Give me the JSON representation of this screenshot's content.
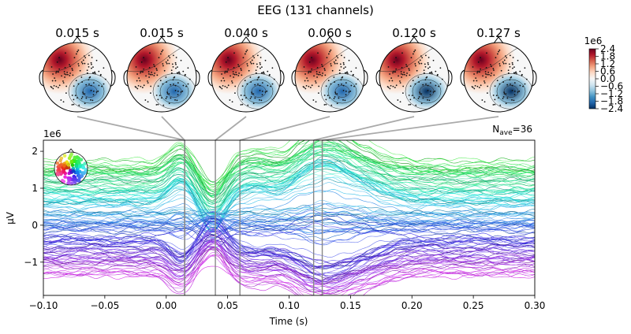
{
  "chart_data": {
    "type": "line",
    "title": "EEG (131 channels)",
    "n_channels": 131,
    "xlabel": "Time (s)",
    "ylabel": "µV",
    "y_exponent": "1e6",
    "xlim": [
      -0.1,
      0.3
    ],
    "ylim": [
      -1.9,
      2.3
    ],
    "xticks": [
      -0.1,
      -0.05,
      0.0,
      0.05,
      0.1,
      0.15,
      0.2,
      0.25,
      0.3
    ],
    "xtick_labels": [
      "−0.10",
      "−0.05",
      "0.00",
      "0.05",
      "0.10",
      "0.15",
      "0.20",
      "0.25",
      "0.30"
    ],
    "yticks": [
      -1,
      0,
      1,
      2
    ],
    "ytick_labels": [
      "−1",
      "0",
      "1",
      "2"
    ],
    "nave_label": "N",
    "nave_subscript": "ave",
    "nave_value": "=36",
    "topomap_times": [
      0.015,
      0.015,
      0.04,
      0.06,
      0.12,
      0.127
    ],
    "topomap_labels": [
      "0.015 s",
      "0.015 s",
      "0.040 s",
      "0.060 s",
      "0.120 s",
      "0.127 s"
    ],
    "colorbar": {
      "exponent": "1e6",
      "ticks": [
        2.4,
        1.8,
        1.2,
        0.6,
        0.0,
        -0.6,
        -1.2,
        -1.8,
        -2.4
      ],
      "tick_labels": [
        "2.4",
        "1.8",
        "1.2",
        "0.6",
        "0.0",
        "−0.6",
        "−1.2",
        "−1.8",
        "−2.4"
      ],
      "colors": [
        "#67001f",
        "#b2182b",
        "#d6604d",
        "#f4a582",
        "#fddbc7",
        "#f7f7f7",
        "#d1e5f0",
        "#92c5de",
        "#4393c3",
        "#2166ac",
        "#053061"
      ]
    }
  }
}
